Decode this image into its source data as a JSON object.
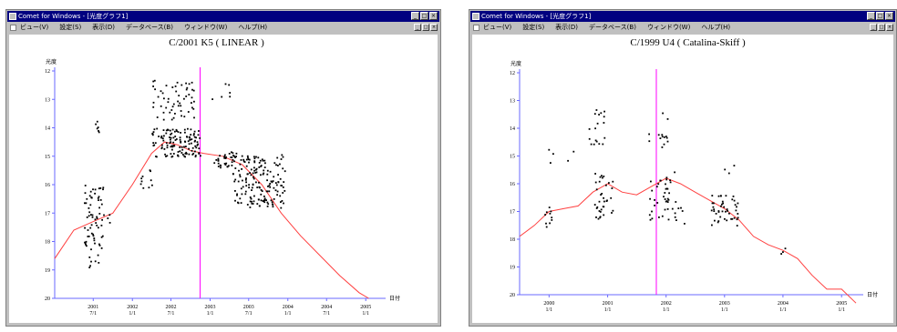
{
  "windows": [
    {
      "title": "Comet for Windows - [光度グラフ1]",
      "menu": [
        "ビュー(V)",
        "設定(S)",
        "表示(D)",
        "データベース(B)",
        "ウィンドウ(W)",
        "ヘルプ(H)"
      ]
    },
    {
      "title": "Comet for Windows - [光度グラフ1]",
      "menu": [
        "ビュー(V)",
        "設定(S)",
        "表示(D)",
        "データベース(B)",
        "ウィンドウ(W)",
        "ヘルプ(H)"
      ]
    }
  ],
  "chart_data": [
    {
      "type": "scatter",
      "title": "C/2001 K5 ( LINEAR )",
      "ylabel": "光度",
      "xlabel": "日付",
      "ylim": [
        12,
        20
      ],
      "y_inverted": true,
      "yticks": [
        "12",
        "13",
        "14",
        "15",
        "16",
        "17",
        "18",
        "19",
        "20"
      ],
      "xlim": [
        "2001-01-01",
        "2005-03-01"
      ],
      "xticks": [
        {
          "x": "2001-07-01",
          "top": "2001",
          "bottom": "7/1"
        },
        {
          "x": "2002-01-01",
          "top": "2002",
          "bottom": "1/1"
        },
        {
          "x": "2002-07-01",
          "top": "2002",
          "bottom": "7/1"
        },
        {
          "x": "2003-01-01",
          "top": "2003",
          "bottom": "1/1"
        },
        {
          "x": "2003-07-01",
          "top": "2003",
          "bottom": "7/1"
        },
        {
          "x": "2004-01-01",
          "top": "2004",
          "bottom": "1/1"
        },
        {
          "x": "2004-07-01",
          "top": "2004",
          "bottom": "7/1"
        },
        {
          "x": "2005-01-01",
          "top": "2005",
          "bottom": "1/1"
        }
      ],
      "current_date": "2002-11-15",
      "prediction_curve": [
        [
          "2001-01-01",
          18.6
        ],
        [
          "2001-04-01",
          17.6
        ],
        [
          "2001-07-01",
          17.3
        ],
        [
          "2001-10-01",
          17.0
        ],
        [
          "2002-01-01",
          16.0
        ],
        [
          "2002-04-01",
          14.9
        ],
        [
          "2002-06-01",
          14.5
        ],
        [
          "2002-08-01",
          14.6
        ],
        [
          "2002-10-01",
          14.8
        ],
        [
          "2002-12-01",
          14.9
        ],
        [
          "2003-03-01",
          15.0
        ],
        [
          "2003-06-01",
          15.3
        ],
        [
          "2003-09-01",
          16.0
        ],
        [
          "2003-12-01",
          17.0
        ],
        [
          "2004-03-01",
          17.8
        ],
        [
          "2004-06-01",
          18.5
        ],
        [
          "2004-09-01",
          19.2
        ],
        [
          "2004-12-01",
          19.8
        ],
        [
          "2005-01-15",
          20.0
        ]
      ],
      "observation_clusters": [
        {
          "x_from": "2001-05-15",
          "x_to": "2001-08-15",
          "y_from": 16.0,
          "y_to": 18.9,
          "n": 70
        },
        {
          "x_from": "2001-07-01",
          "x_to": "2001-08-01",
          "y_from": 13.3,
          "y_to": 14.4,
          "n": 6
        },
        {
          "x_from": "2001-08-01",
          "x_to": "2001-10-01",
          "y_from": 17.0,
          "y_to": 17.5,
          "n": 4
        },
        {
          "x_from": "2002-02-01",
          "x_to": "2002-04-01",
          "y_from": 15.4,
          "y_to": 16.1,
          "n": 10
        },
        {
          "x_from": "2002-04-01",
          "x_to": "2002-10-15",
          "y_from": 12.3,
          "y_to": 13.7,
          "n": 55
        },
        {
          "x_from": "2002-04-01",
          "x_to": "2002-11-15",
          "y_from": 14.0,
          "y_to": 15.0,
          "n": 130
        },
        {
          "x_from": "2003-01-01",
          "x_to": "2003-04-01",
          "y_from": 12.4,
          "y_to": 13.0,
          "n": 6
        },
        {
          "x_from": "2003-01-15",
          "x_to": "2003-05-01",
          "y_from": 14.8,
          "y_to": 15.4,
          "n": 35
        },
        {
          "x_from": "2003-04-15",
          "x_to": "2003-12-15",
          "y_from": 14.9,
          "y_to": 16.8,
          "n": 170
        }
      ]
    },
    {
      "type": "scatter",
      "title": "C/1999 U4 ( Catalina-Skiff )",
      "ylabel": "光度",
      "xlabel": "日付",
      "ylim": [
        12,
        20
      ],
      "y_inverted": true,
      "yticks": [
        "12",
        "13",
        "14",
        "15",
        "16",
        "17",
        "18",
        "19",
        "20"
      ],
      "xlim": [
        "1999-07-01",
        "2005-04-01"
      ],
      "xticks": [
        {
          "x": "2000-01-01",
          "top": "2000",
          "bottom": "1/1"
        },
        {
          "x": "2001-01-01",
          "top": "2001",
          "bottom": "1/1"
        },
        {
          "x": "2002-01-01",
          "top": "2002",
          "bottom": "1/1"
        },
        {
          "x": "2003-01-01",
          "top": "2003",
          "bottom": "1/1"
        },
        {
          "x": "2004-01-01",
          "top": "2004",
          "bottom": "1/1"
        },
        {
          "x": "2005-01-01",
          "top": "2005",
          "bottom": "1/1"
        }
      ],
      "current_date": "2001-11-01",
      "prediction_curve": [
        [
          "1999-07-01",
          17.9
        ],
        [
          "1999-10-01",
          17.5
        ],
        [
          "2000-01-01",
          17.0
        ],
        [
          "2000-04-01",
          16.9
        ],
        [
          "2000-07-01",
          16.8
        ],
        [
          "2000-10-01",
          16.3
        ],
        [
          "2001-01-01",
          16.0
        ],
        [
          "2001-04-01",
          16.3
        ],
        [
          "2001-07-01",
          16.4
        ],
        [
          "2001-10-01",
          16.1
        ],
        [
          "2002-01-01",
          15.8
        ],
        [
          "2002-04-01",
          16.0
        ],
        [
          "2002-07-01",
          16.3
        ],
        [
          "2002-10-01",
          16.6
        ],
        [
          "2003-01-01",
          16.9
        ],
        [
          "2003-04-01",
          17.3
        ],
        [
          "2003-07-01",
          17.9
        ],
        [
          "2003-10-01",
          18.2
        ],
        [
          "2004-01-01",
          18.4
        ],
        [
          "2004-04-01",
          18.7
        ],
        [
          "2004-07-01",
          19.3
        ],
        [
          "2004-10-01",
          19.8
        ],
        [
          "2005-01-01",
          19.8
        ],
        [
          "2005-04-01",
          20.3
        ]
      ],
      "observation_clusters": [
        {
          "x_from": "1999-12-01",
          "x_to": "2000-01-15",
          "y_from": 16.8,
          "y_to": 17.6,
          "n": 10
        },
        {
          "x_from": "1999-12-01",
          "x_to": "2000-02-01",
          "y_from": 14.7,
          "y_to": 15.3,
          "n": 3
        },
        {
          "x_from": "2000-04-01",
          "x_to": "2000-06-01",
          "y_from": 14.8,
          "y_to": 15.2,
          "n": 2
        },
        {
          "x_from": "2000-09-01",
          "x_to": "2000-12-15",
          "y_from": 13.3,
          "y_to": 14.6,
          "n": 18
        },
        {
          "x_from": "2000-10-01",
          "x_to": "2001-02-01",
          "y_from": 15.6,
          "y_to": 17.3,
          "n": 35
        },
        {
          "x_from": "2001-09-01",
          "x_to": "2002-01-15",
          "y_from": 13.4,
          "y_to": 14.8,
          "n": 14
        },
        {
          "x_from": "2001-09-15",
          "x_to": "2002-03-01",
          "y_from": 15.5,
          "y_to": 17.3,
          "n": 40
        },
        {
          "x_from": "2002-02-01",
          "x_to": "2002-05-01",
          "y_from": 16.8,
          "y_to": 17.6,
          "n": 6
        },
        {
          "x_from": "2002-10-01",
          "x_to": "2003-04-01",
          "y_from": 16.4,
          "y_to": 17.5,
          "n": 45
        },
        {
          "x_from": "2002-12-01",
          "x_to": "2003-03-01",
          "y_from": 15.3,
          "y_to": 15.6,
          "n": 3
        },
        {
          "x_from": "2003-12-01",
          "x_to": "2004-01-15",
          "y_from": 18.3,
          "y_to": 18.5,
          "n": 3
        }
      ]
    }
  ]
}
